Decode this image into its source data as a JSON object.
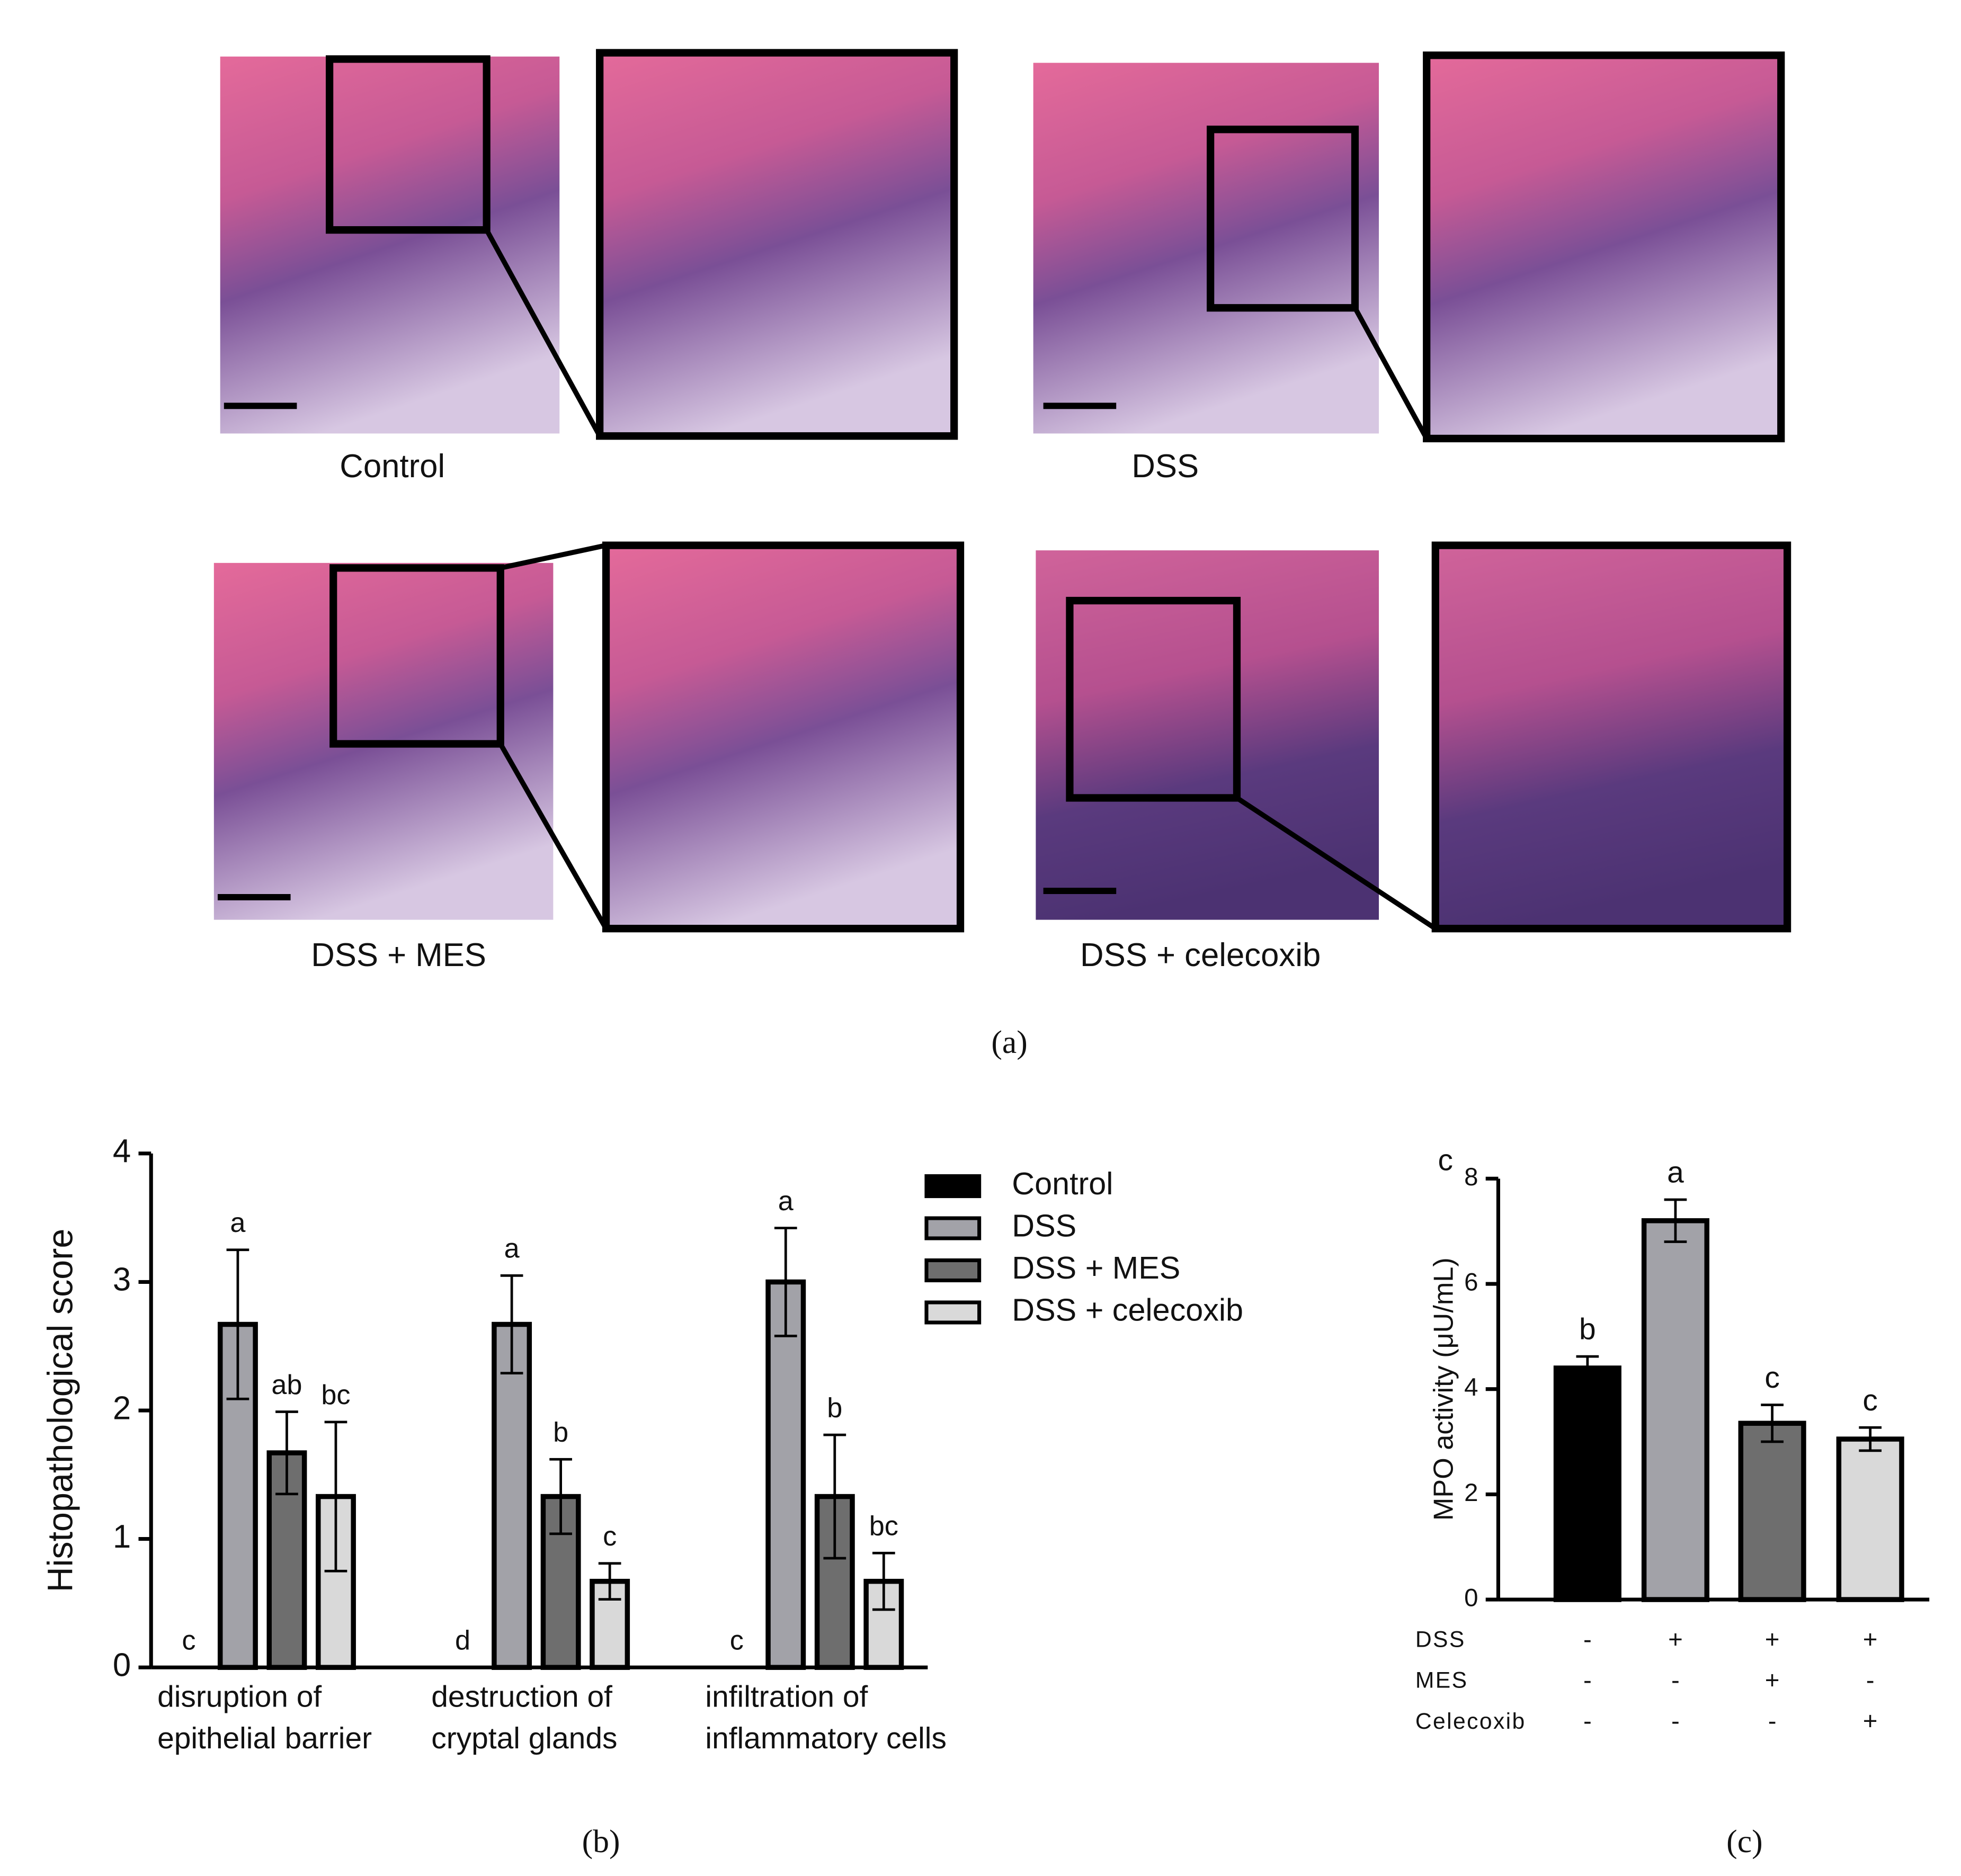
{
  "panel_a": {
    "labels": [
      "Control",
      "DSS",
      "DSS + MES",
      "DSS + celecoxib"
    ],
    "caption": "(a)"
  },
  "chart_data": [
    {
      "type": "bar",
      "caption": "(b)",
      "y_label": "Histopathological score",
      "categories": [
        "disruption of\nepithelial barrier",
        "destruction of\ncryptal glands",
        "infiltration of\ninflammatory cells"
      ],
      "series": [
        {
          "name": "Control",
          "color": "#000000",
          "values": [
            0,
            0,
            0
          ],
          "errors": [
            0,
            0,
            0
          ],
          "annotations": [
            "c",
            "d",
            "c"
          ]
        },
        {
          "name": "DSS",
          "color": "#a2a2a8",
          "values": [
            2.67,
            2.67,
            3.0
          ],
          "errors": [
            0.58,
            0.38,
            0.42
          ],
          "annotations": [
            "a",
            "a",
            "a"
          ]
        },
        {
          "name": "DSS + MES",
          "color": "#6e6e6e",
          "values": [
            1.67,
            1.33,
            1.33
          ],
          "errors": [
            0.32,
            0.29,
            0.48
          ],
          "annotations": [
            "ab",
            "b",
            "b"
          ]
        },
        {
          "name": "DSS + celecoxib",
          "color": "#d9d9d9",
          "values": [
            1.33,
            0.67,
            0.67
          ],
          "errors": [
            0.58,
            0.14,
            0.22
          ],
          "annotations": [
            "bc",
            "c",
            "bc"
          ]
        }
      ],
      "ylim": [
        0,
        4
      ],
      "yticks": [
        0,
        1,
        2,
        3,
        4
      ],
      "legend": "right"
    },
    {
      "type": "bar",
      "caption": "(c)",
      "y_label": "MPO activity (μU/mL)",
      "corner_label": "c",
      "categories": [
        null,
        null,
        null,
        null
      ],
      "values": [
        4.4,
        7.2,
        3.35,
        3.05
      ],
      "errors": [
        0.22,
        0.4,
        0.35,
        0.22
      ],
      "colors": [
        "#000000",
        "#a2a2a8",
        "#6e6e6e",
        "#d9d9d9"
      ],
      "annotations": [
        "b",
        "a",
        "c",
        "c"
      ],
      "treatment_rows": [
        {
          "label": "DSS",
          "signs": [
            "-",
            "+",
            "+",
            "+"
          ]
        },
        {
          "label": "MES",
          "signs": [
            "-",
            "-",
            "+",
            "-"
          ]
        },
        {
          "label": "Celecoxib",
          "signs": [
            "-",
            "-",
            "-",
            "+"
          ]
        }
      ],
      "ylim": [
        0,
        8
      ],
      "yticks": [
        0,
        2,
        4,
        6,
        8
      ]
    }
  ]
}
